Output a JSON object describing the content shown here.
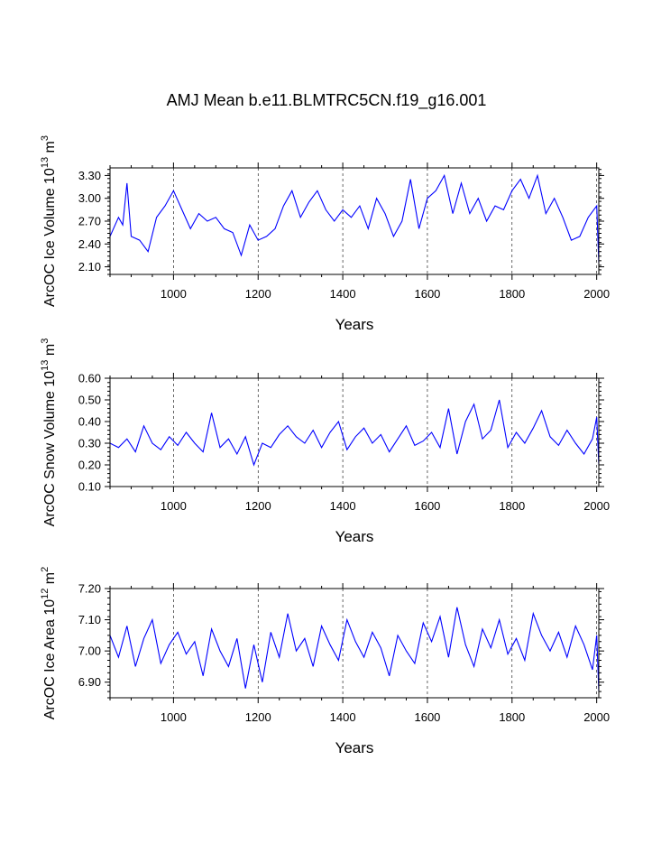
{
  "title": "AMJ Mean b.e11.BLMTRC5CN.f19_g16.001",
  "series_color": "#0000ff",
  "chart_data": [
    {
      "type": "line",
      "ylabel_main": "ArcOC Ice Volume 10",
      "ylabel_exp": "13",
      "ylabel_unit": " m",
      "ylabel_unit_exp": "3",
      "xlabel": "Years",
      "xlim": [
        850,
        2005
      ],
      "ylim": [
        2.0,
        3.4
      ],
      "xticks": [
        1000,
        1200,
        1400,
        1600,
        1800,
        2000
      ],
      "yticks": [
        2.1,
        2.4,
        2.7,
        3.0,
        3.3
      ],
      "ytick_labels": [
        "2.10",
        "2.40",
        "2.70",
        "3.00",
        "3.30"
      ],
      "xtick_labels": [
        "1000",
        "1200",
        "1400",
        "1600",
        "1800",
        "2000"
      ],
      "grid": "dashed vertical at x ticks",
      "x": [
        850,
        870,
        880,
        890,
        900,
        920,
        940,
        960,
        980,
        1000,
        1020,
        1040,
        1060,
        1080,
        1100,
        1120,
        1140,
        1160,
        1180,
        1200,
        1220,
        1240,
        1260,
        1280,
        1300,
        1320,
        1340,
        1360,
        1380,
        1400,
        1420,
        1440,
        1460,
        1480,
        1500,
        1520,
        1540,
        1560,
        1580,
        1600,
        1620,
        1640,
        1660,
        1680,
        1700,
        1720,
        1740,
        1760,
        1780,
        1800,
        1820,
        1840,
        1860,
        1880,
        1900,
        1920,
        1940,
        1960,
        1980,
        2000,
        2005
      ],
      "values": [
        2.5,
        2.75,
        2.65,
        3.2,
        2.5,
        2.45,
        2.3,
        2.75,
        2.9,
        3.1,
        2.85,
        2.6,
        2.8,
        2.7,
        2.75,
        2.6,
        2.55,
        2.25,
        2.65,
        2.45,
        2.5,
        2.6,
        2.9,
        3.1,
        2.75,
        2.95,
        3.1,
        2.85,
        2.7,
        2.85,
        2.75,
        2.9,
        2.6,
        3.0,
        2.8,
        2.5,
        2.7,
        3.25,
        2.6,
        3.0,
        3.1,
        3.3,
        2.8,
        3.2,
        2.8,
        3.0,
        2.7,
        2.9,
        2.85,
        3.1,
        3.25,
        3.0,
        3.3,
        2.8,
        3.0,
        2.75,
        2.45,
        2.5,
        2.75,
        2.9,
        2.15
      ]
    },
    {
      "type": "line",
      "ylabel_main": "ArcOC Snow Volume 10",
      "ylabel_exp": "13",
      "ylabel_unit": " m",
      "ylabel_unit_exp": "3",
      "xlabel": "Years",
      "xlim": [
        850,
        2005
      ],
      "ylim": [
        0.1,
        0.6
      ],
      "xticks": [
        1000,
        1200,
        1400,
        1600,
        1800,
        2000
      ],
      "yticks": [
        0.1,
        0.2,
        0.3,
        0.4,
        0.5,
        0.6
      ],
      "ytick_labels": [
        "0.10",
        "0.20",
        "0.30",
        "0.40",
        "0.50",
        "0.60"
      ],
      "xtick_labels": [
        "1000",
        "1200",
        "1400",
        "1600",
        "1800",
        "2000"
      ],
      "grid": "dashed vertical at x ticks",
      "x": [
        850,
        870,
        890,
        910,
        930,
        950,
        970,
        990,
        1010,
        1030,
        1050,
        1070,
        1090,
        1110,
        1130,
        1150,
        1170,
        1190,
        1210,
        1230,
        1250,
        1270,
        1290,
        1310,
        1330,
        1350,
        1370,
        1390,
        1410,
        1430,
        1450,
        1470,
        1490,
        1510,
        1530,
        1550,
        1570,
        1590,
        1610,
        1630,
        1650,
        1670,
        1690,
        1710,
        1730,
        1750,
        1770,
        1790,
        1810,
        1830,
        1850,
        1870,
        1890,
        1910,
        1930,
        1950,
        1970,
        1990,
        2000,
        2005
      ],
      "values": [
        0.3,
        0.28,
        0.32,
        0.26,
        0.38,
        0.3,
        0.27,
        0.33,
        0.29,
        0.35,
        0.3,
        0.26,
        0.44,
        0.28,
        0.32,
        0.25,
        0.33,
        0.2,
        0.3,
        0.28,
        0.34,
        0.38,
        0.33,
        0.3,
        0.36,
        0.28,
        0.35,
        0.4,
        0.27,
        0.33,
        0.37,
        0.3,
        0.34,
        0.26,
        0.32,
        0.38,
        0.29,
        0.31,
        0.35,
        0.28,
        0.46,
        0.25,
        0.4,
        0.48,
        0.32,
        0.36,
        0.5,
        0.28,
        0.35,
        0.3,
        0.37,
        0.45,
        0.33,
        0.29,
        0.36,
        0.3,
        0.25,
        0.32,
        0.42,
        0.2
      ]
    },
    {
      "type": "line",
      "ylabel_main": "ArcOC Ice Area 10",
      "ylabel_exp": "12",
      "ylabel_unit": " m",
      "ylabel_unit_exp": "2",
      "xlabel": "Years",
      "xlim": [
        850,
        2005
      ],
      "ylim": [
        6.85,
        7.2
      ],
      "xticks": [
        1000,
        1200,
        1400,
        1600,
        1800,
        2000
      ],
      "yticks": [
        6.9,
        7.0,
        7.1,
        7.2
      ],
      "ytick_labels": [
        "6.90",
        "7.00",
        "7.10",
        "7.20"
      ],
      "xtick_labels": [
        "1000",
        "1200",
        "1400",
        "1600",
        "1800",
        "2000"
      ],
      "grid": "dashed vertical at x ticks",
      "x": [
        850,
        870,
        890,
        910,
        930,
        950,
        970,
        990,
        1010,
        1030,
        1050,
        1070,
        1090,
        1110,
        1130,
        1150,
        1170,
        1190,
        1210,
        1230,
        1250,
        1270,
        1290,
        1310,
        1330,
        1350,
        1370,
        1390,
        1410,
        1430,
        1450,
        1470,
        1490,
        1510,
        1530,
        1550,
        1570,
        1590,
        1610,
        1630,
        1650,
        1670,
        1690,
        1710,
        1730,
        1750,
        1770,
        1790,
        1810,
        1830,
        1850,
        1870,
        1890,
        1910,
        1930,
        1950,
        1970,
        1990,
        2000,
        2005
      ],
      "values": [
        7.05,
        6.98,
        7.08,
        6.95,
        7.04,
        7.1,
        6.96,
        7.02,
        7.06,
        6.99,
        7.03,
        6.92,
        7.07,
        7.0,
        6.95,
        7.04,
        6.88,
        7.02,
        6.9,
        7.06,
        6.98,
        7.12,
        7.0,
        7.04,
        6.95,
        7.08,
        7.02,
        6.97,
        7.1,
        7.03,
        6.98,
        7.06,
        7.01,
        6.92,
        7.05,
        7.0,
        6.96,
        7.09,
        7.03,
        7.11,
        6.98,
        7.14,
        7.02,
        6.95,
        7.07,
        7.01,
        7.1,
        6.99,
        7.04,
        6.97,
        7.12,
        7.05,
        7.0,
        7.06,
        6.98,
        7.08,
        7.02,
        6.94,
        7.05,
        6.87
      ]
    }
  ]
}
